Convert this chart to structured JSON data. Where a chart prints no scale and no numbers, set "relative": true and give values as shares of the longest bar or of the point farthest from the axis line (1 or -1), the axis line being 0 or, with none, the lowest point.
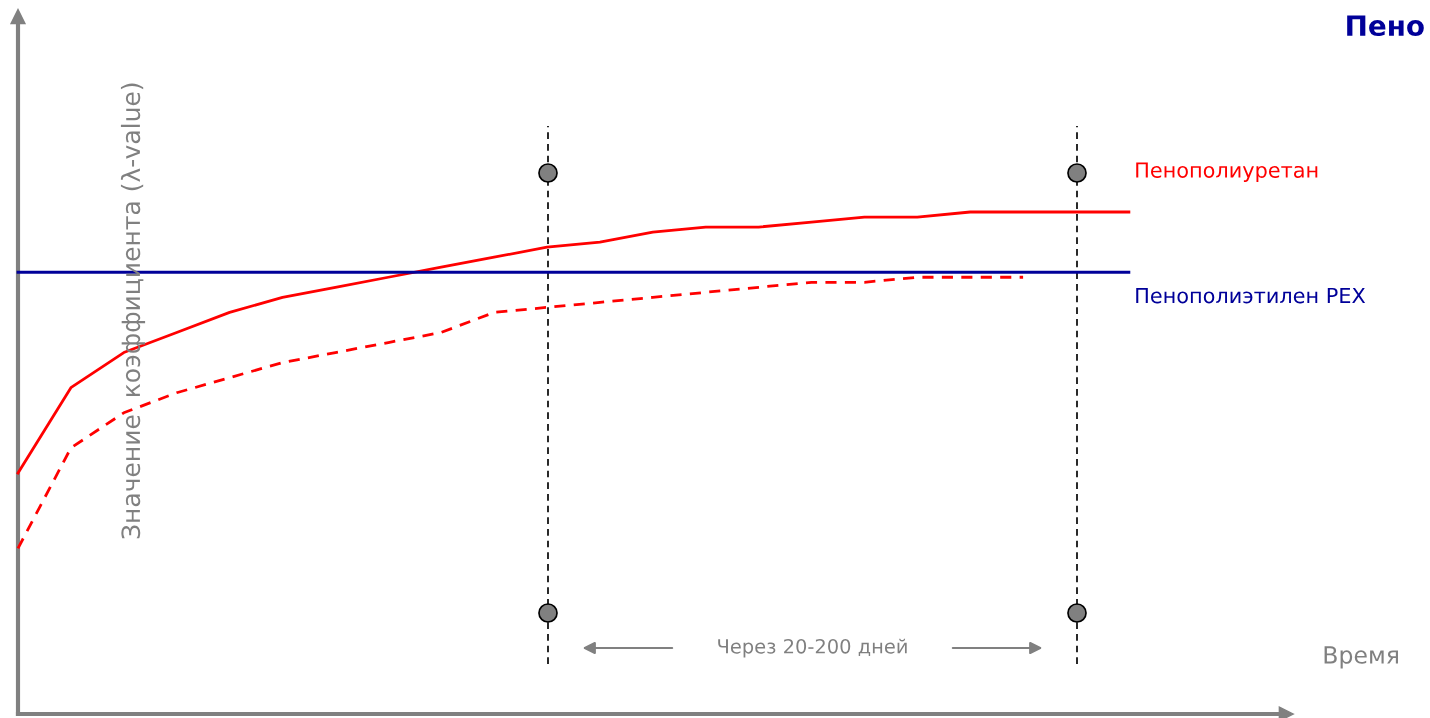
{
  "chart_data": {
    "type": "line",
    "relative": true,
    "title": "Пено",
    "ylabel": "Значение  коэффициента (λ-value)",
    "categories": [
      null,
      null,
      null,
      null,
      null,
      null,
      null,
      null,
      null,
      null,
      null,
      null,
      null,
      null,
      null,
      null,
      null,
      null,
      null,
      null,
      null,
      null
    ],
    "series": [
      {
        "name": "Пенополиуретан",
        "color": "#ff0000",
        "line_style": "solid",
        "values": [
          0.48,
          0.65,
          0.72,
          0.76,
          0.8,
          0.83,
          0.85,
          0.87,
          0.89,
          0.91,
          0.93,
          0.94,
          0.96,
          0.97,
          0.97,
          0.98,
          0.99,
          0.99,
          1.0,
          1.0,
          1.0,
          1.0
        ]
      },
      {
        "color": "#ff0000",
        "line_style": "dashed",
        "values": [
          0.33,
          0.53,
          0.6,
          0.64,
          0.67,
          0.7,
          0.72,
          0.74,
          0.76,
          0.8,
          0.81,
          0.82,
          0.83,
          0.84,
          0.85,
          0.86,
          0.86,
          0.87,
          0.87,
          0.87,
          null,
          null
        ]
      },
      {
        "name": "Пенополиэтилен PEX",
        "color": "#000099",
        "line_style": "solid",
        "values": [
          0.88,
          0.88,
          0.88,
          0.88,
          0.88,
          0.88,
          0.88,
          0.88,
          0.88,
          0.88,
          0.88,
          0.88,
          0.88,
          0.88,
          0.88,
          0.88,
          0.88,
          0.88,
          0.88,
          0.88,
          0.88,
          0.88
        ]
      }
    ],
    "annotations": [
      "Через 20-200 дней",
      "Время"
    ],
    "legend": false
  }
}
